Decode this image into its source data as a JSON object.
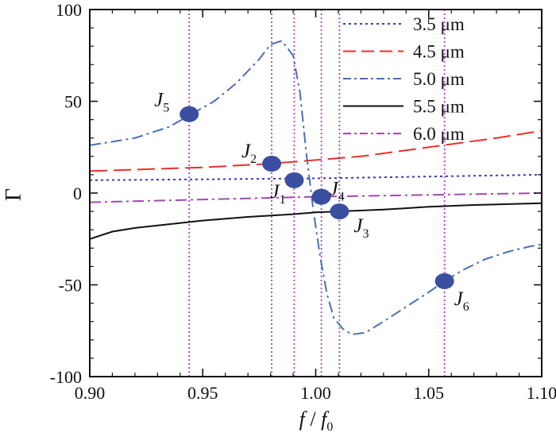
{
  "chart_data": {
    "type": "line",
    "xlabel": "f / f0",
    "xlabel_parts": [
      "f",
      " / ",
      "f",
      "0"
    ],
    "ylabel": "Γ",
    "xlim": [
      0.9,
      1.1
    ],
    "ylim": [
      -100,
      100
    ],
    "x_ticks": [
      0.9,
      0.95,
      1.0,
      1.05,
      1.1
    ],
    "x_tick_labels": [
      "0.90",
      "0.95",
      "1.00",
      "1.05",
      "1.10"
    ],
    "y_ticks": [
      -100,
      -50,
      0,
      50,
      100
    ],
    "y_tick_labels": [
      "-100",
      "-50",
      "0",
      "50",
      "100"
    ],
    "grid": false,
    "legend_position": "top-right",
    "series": [
      {
        "name": "3.5 μm",
        "color": "#3a3ab0",
        "dash": "dotted",
        "points": [
          [
            0.9,
            7
          ],
          [
            0.95,
            7.5
          ],
          [
            1.0,
            8
          ],
          [
            1.05,
            9
          ],
          [
            1.1,
            10
          ]
        ]
      },
      {
        "name": "4.5 μm",
        "color": "#e8322a",
        "dash": "long-dash",
        "points": [
          [
            0.9,
            12
          ],
          [
            0.95,
            14
          ],
          [
            0.98,
            16
          ],
          [
            1.0,
            18
          ],
          [
            1.02,
            20
          ],
          [
            1.05,
            25
          ],
          [
            1.08,
            30
          ],
          [
            1.1,
            34
          ]
        ]
      },
      {
        "name": "5.0 μm",
        "color": "#4a6fb8",
        "dash": "dash-dot",
        "points": [
          [
            0.9,
            26
          ],
          [
            0.92,
            30
          ],
          [
            0.935,
            36
          ],
          [
            0.945,
            43
          ],
          [
            0.955,
            50
          ],
          [
            0.965,
            60
          ],
          [
            0.975,
            73
          ],
          [
            0.98,
            81
          ],
          [
            0.985,
            83
          ],
          [
            0.99,
            75
          ],
          [
            0.993,
            55
          ],
          [
            0.996,
            20
          ],
          [
            0.999,
            -10
          ],
          [
            1.002,
            -35
          ],
          [
            1.005,
            -55
          ],
          [
            1.008,
            -68
          ],
          [
            1.012,
            -74
          ],
          [
            1.016,
            -77
          ],
          [
            1.022,
            -76
          ],
          [
            1.03,
            -70
          ],
          [
            1.04,
            -62
          ],
          [
            1.05,
            -54
          ],
          [
            1.057,
            -48
          ],
          [
            1.065,
            -42
          ],
          [
            1.075,
            -36
          ],
          [
            1.085,
            -32
          ],
          [
            1.095,
            -29
          ],
          [
            1.1,
            -28
          ]
        ]
      },
      {
        "name": "5.5 μm",
        "color": "#111111",
        "dash": "solid",
        "points": [
          [
            0.9,
            -25
          ],
          [
            0.91,
            -21
          ],
          [
            0.92,
            -19
          ],
          [
            0.935,
            -17
          ],
          [
            0.95,
            -15
          ],
          [
            0.97,
            -13
          ],
          [
            0.99,
            -11.5
          ],
          [
            1.0,
            -10.5
          ],
          [
            1.01,
            -10
          ],
          [
            1.03,
            -9
          ],
          [
            1.05,
            -7.5
          ],
          [
            1.07,
            -6.5
          ],
          [
            1.1,
            -5.5
          ]
        ]
      },
      {
        "name": "6.0 μm",
        "color": "#a04ab0",
        "dash": "dash-dot",
        "points": [
          [
            0.9,
            -5
          ],
          [
            0.95,
            -3.5
          ],
          [
            1.0,
            -2
          ],
          [
            1.05,
            -1
          ],
          [
            1.1,
            0
          ]
        ]
      }
    ],
    "vertical_markers": [
      0.944,
      0.9805,
      0.9905,
      1.0025,
      1.0105,
      1.057
    ],
    "vertical_marker_color": "#b040c0",
    "annotations": [
      {
        "label": "J",
        "sub": "1",
        "x": 0.9905,
        "y": 7
      },
      {
        "label": "J",
        "sub": "2",
        "x": 0.9805,
        "y": 16
      },
      {
        "label": "J",
        "sub": "3",
        "x": 1.0105,
        "y": -10
      },
      {
        "label": "J",
        "sub": "4",
        "x": 1.0025,
        "y": -2
      },
      {
        "label": "J",
        "sub": "5",
        "x": 0.944,
        "y": 43
      },
      {
        "label": "J",
        "sub": "6",
        "x": 1.057,
        "y": -48
      }
    ],
    "marker_color": "#3a4fa0"
  }
}
